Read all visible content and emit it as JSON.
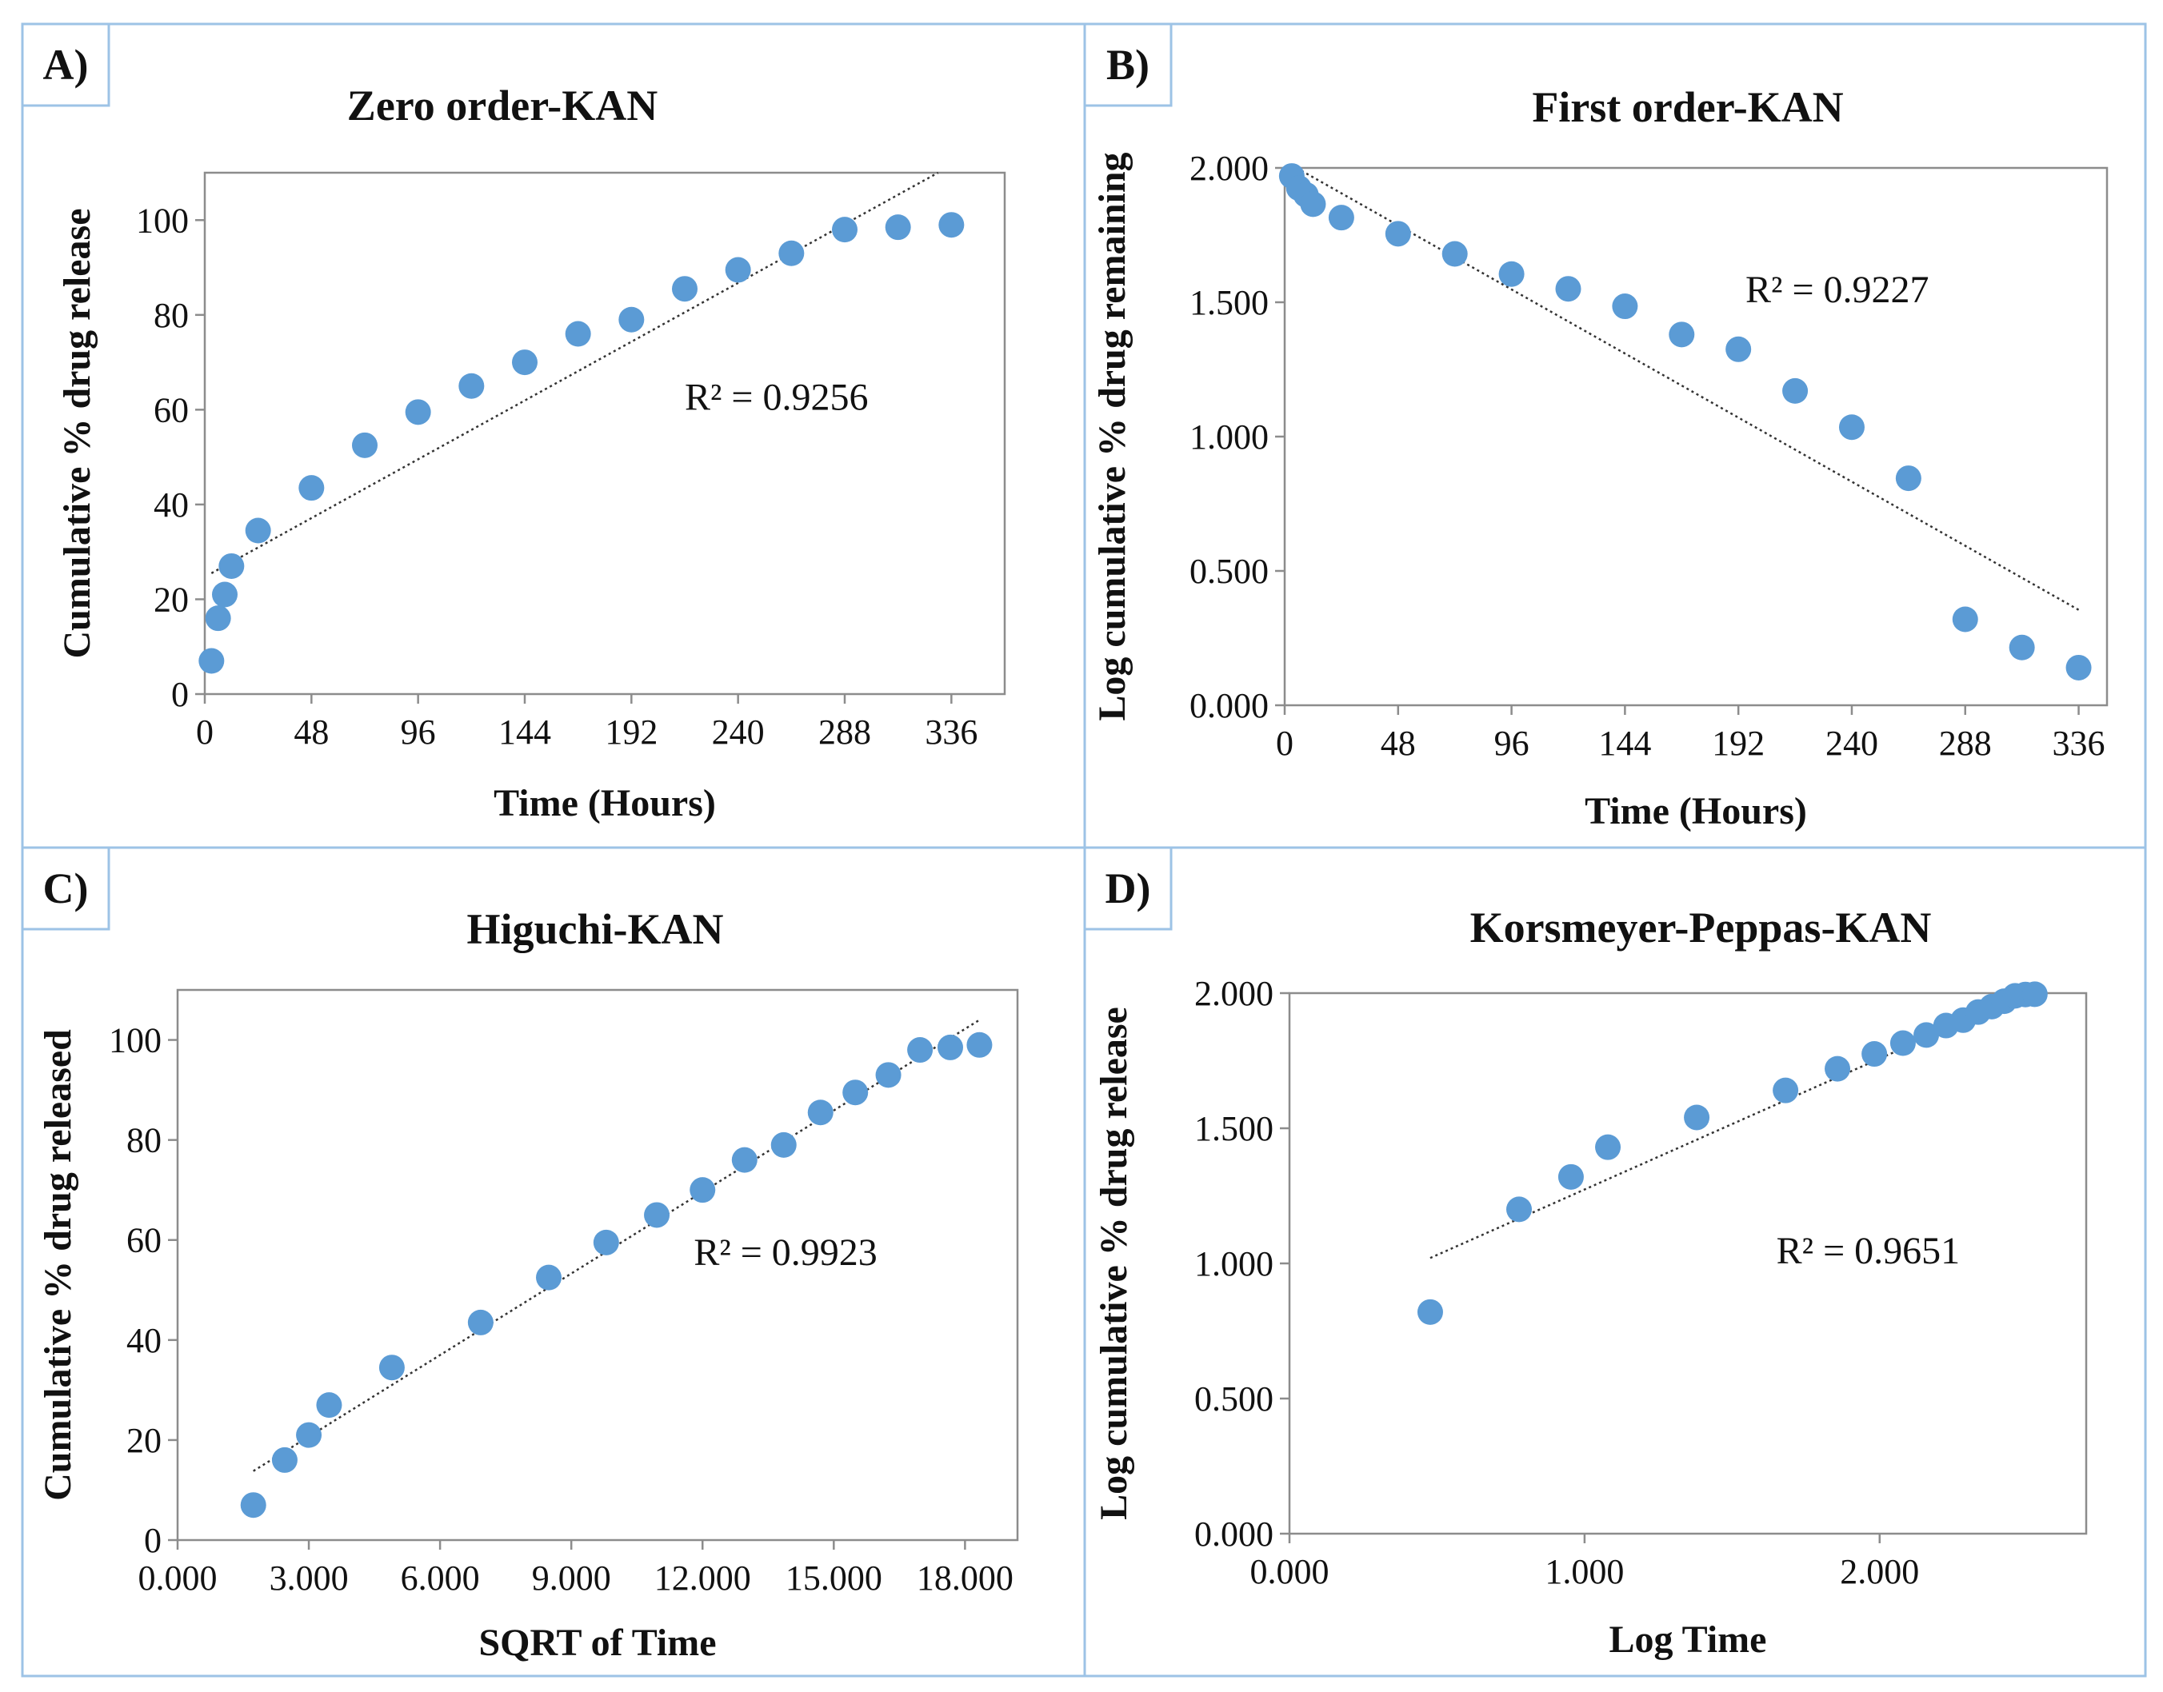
{
  "colors": {
    "marker": "#5b9bd5",
    "frame": "#9dc3e6",
    "axis": "#8c8c8c",
    "trend": "#333333"
  },
  "chart_data": [
    {
      "panel": "A)",
      "type": "scatter",
      "title": "Zero order-KAN",
      "xlabel": "Time (Hours)",
      "ylabel": "Cumulative % drug release",
      "xlim": [
        0,
        360
      ],
      "ylim": [
        0,
        110
      ],
      "xticks": [
        0,
        48,
        96,
        144,
        192,
        240,
        288,
        336
      ],
      "xtick_labels": [
        "0",
        "48",
        "96",
        "144",
        "192",
        "240",
        "288",
        "336"
      ],
      "yticks": [
        0,
        20,
        40,
        60,
        80,
        100
      ],
      "ytick_labels": [
        "0",
        "20",
        "40",
        "60",
        "80",
        "100"
      ],
      "x": [
        3,
        6,
        9,
        12,
        24,
        48,
        72,
        96,
        120,
        144,
        168,
        192,
        216,
        240,
        264,
        288,
        312,
        336
      ],
      "y": [
        7,
        16,
        21,
        27,
        34.5,
        43.5,
        52.5,
        59.5,
        65,
        70,
        76,
        79,
        85.5,
        89.5,
        93,
        98,
        98.5,
        99
      ],
      "trendline": {
        "x": [
          3,
          330
        ],
        "y": [
          25.5,
          110
        ]
      },
      "r2_label": "R² = 0.9256",
      "r2_at": [
        216,
        60
      ]
    },
    {
      "panel": "B)",
      "type": "scatter",
      "title": "First order-KAN",
      "xlabel": "Time (Hours)",
      "ylabel": "Log cumulative % drug remaining",
      "xlim": [
        0,
        348
      ],
      "ylim": [
        0,
        2
      ],
      "xticks": [
        0,
        48,
        96,
        144,
        192,
        240,
        288,
        336
      ],
      "xtick_labels": [
        "0",
        "48",
        "96",
        "144",
        "192",
        "240",
        "288",
        "336"
      ],
      "yticks": [
        0,
        0.5,
        1,
        1.5,
        2
      ],
      "ytick_labels": [
        "0.000",
        "0.500",
        "1.000",
        "1.500",
        "2.000"
      ],
      "x": [
        3,
        6,
        9,
        12,
        24,
        48,
        72,
        96,
        120,
        144,
        168,
        192,
        216,
        240,
        264,
        288,
        312,
        336
      ],
      "y": [
        1.97,
        1.925,
        1.9,
        1.865,
        1.815,
        1.755,
        1.68,
        1.605,
        1.55,
        1.485,
        1.38,
        1.325,
        1.17,
        1.035,
        0.845,
        0.32,
        0.215,
        0.14
      ],
      "trendline": {
        "x": [
          3,
          336
        ],
        "y": [
          2.01,
          0.355
        ]
      },
      "r2_label": "R² = 0.9227",
      "r2_at": [
        195,
        1.5
      ]
    },
    {
      "panel": "C)",
      "type": "scatter",
      "title": "Higuchi-KAN",
      "xlabel": "SQRT of Time",
      "ylabel": "Cumulative % drug released",
      "xlim": [
        0,
        19.2
      ],
      "ylim": [
        0,
        110
      ],
      "xticks": [
        0,
        3,
        6,
        9,
        12,
        15,
        18
      ],
      "xtick_labels": [
        "0.000",
        "3.000",
        "6.000",
        "9.000",
        "12.000",
        "15.000",
        "18.000"
      ],
      "yticks": [
        0,
        20,
        40,
        60,
        80,
        100
      ],
      "ytick_labels": [
        "0",
        "20",
        "40",
        "60",
        "80",
        "100"
      ],
      "x": [
        1.732,
        2.449,
        3.0,
        3.464,
        4.899,
        6.928,
        8.485,
        9.798,
        10.954,
        12.0,
        12.961,
        13.856,
        14.697,
        15.492,
        16.248,
        16.971,
        17.664,
        18.33
      ],
      "y": [
        7,
        16,
        21,
        27,
        34.5,
        43.5,
        52.5,
        59.5,
        65,
        70,
        76,
        79,
        85.5,
        89.5,
        93,
        98,
        98.5,
        99
      ],
      "trendline": {
        "x": [
          1.732,
          18.33
        ],
        "y": [
          13.8,
          104
        ]
      },
      "r2_label": "R² = 0.9923",
      "r2_at": [
        11.8,
        55
      ]
    },
    {
      "panel": "D)",
      "type": "scatter",
      "title": "Korsmeyer-Peppas-KAN",
      "xlabel": "Log Time",
      "ylabel": "Log cumulative % drug release",
      "xlim": [
        0,
        2.7
      ],
      "ylim": [
        0,
        2
      ],
      "xticks": [
        0,
        1,
        2
      ],
      "xtick_labels": [
        "0.000",
        "1.000",
        "2.000"
      ],
      "yticks": [
        0,
        0.5,
        1,
        1.5,
        2
      ],
      "ytick_labels": [
        "0.000",
        "0.500",
        "1.000",
        "1.500",
        "2.000"
      ],
      "x": [
        0.477,
        0.778,
        0.954,
        1.079,
        1.38,
        1.681,
        1.857,
        1.982,
        2.079,
        2.158,
        2.225,
        2.283,
        2.334,
        2.38,
        2.422,
        2.459,
        2.494,
        2.526
      ],
      "y": [
        0.82,
        1.2,
        1.32,
        1.43,
        1.54,
        1.64,
        1.72,
        1.775,
        1.815,
        1.845,
        1.88,
        1.9,
        1.93,
        1.95,
        1.97,
        1.99,
        1.995,
        1.996
      ],
      "trendline": {
        "x": [
          0.477,
          2.5
        ],
        "y": [
          1.02,
          2.0
        ]
      },
      "r2_label": "R² = 0.9651",
      "r2_at": [
        1.65,
        1.0
      ]
    }
  ]
}
